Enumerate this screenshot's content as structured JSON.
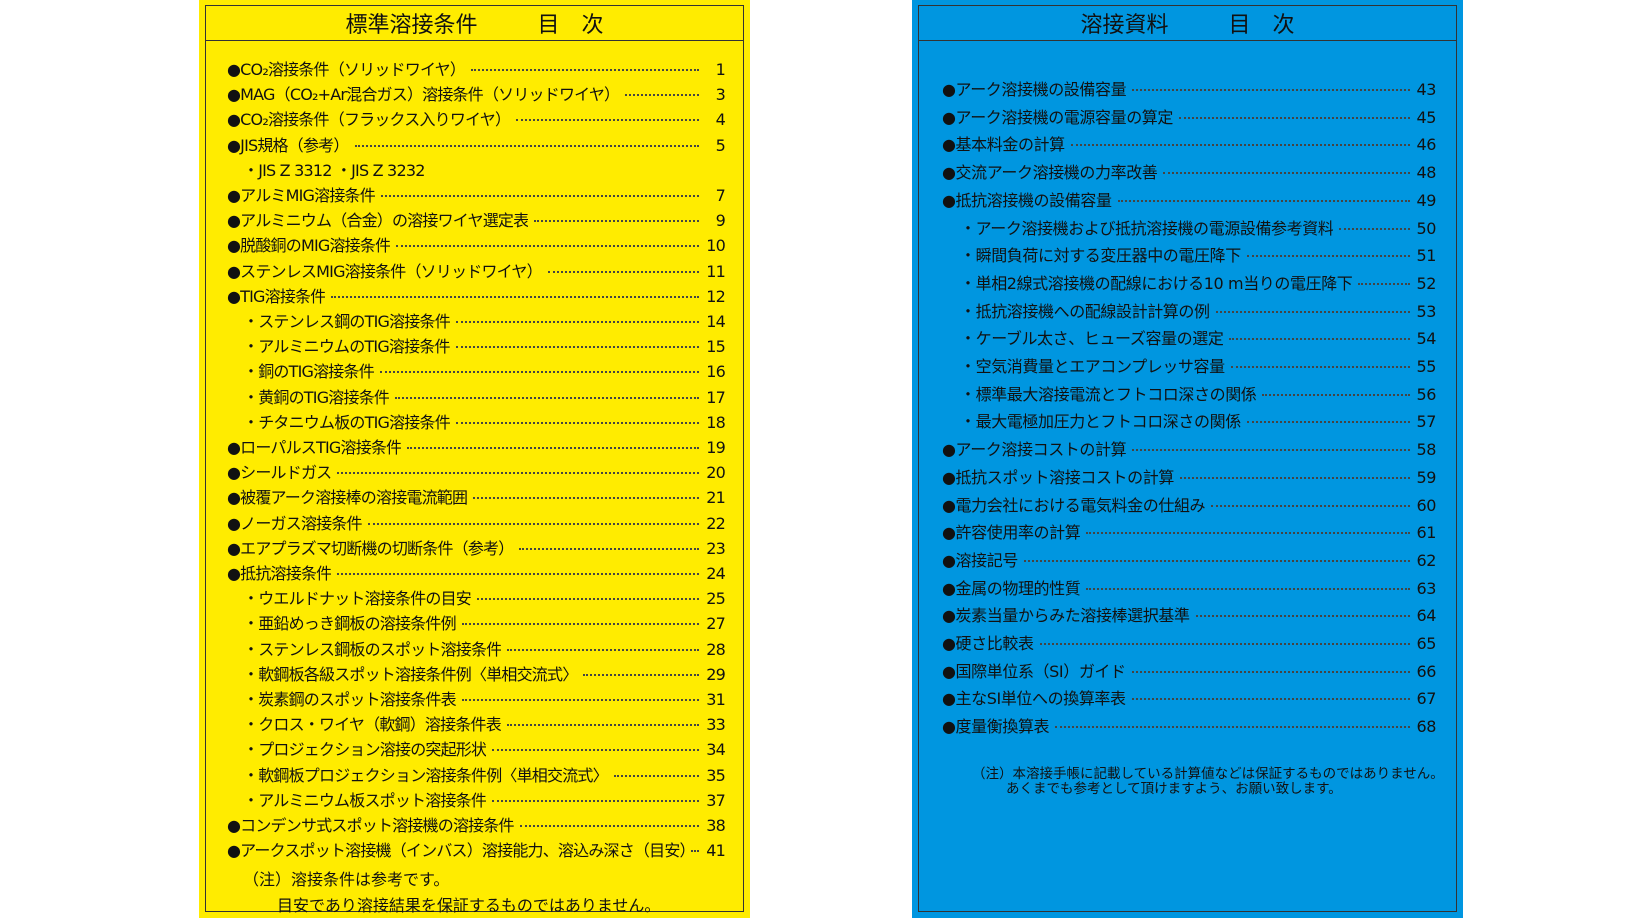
{
  "left": {
    "title": "標準溶接条件",
    "subtitle": "目　次",
    "entries": [
      {
        "label": "●CO₂溶接条件（ソリッドワイヤ）",
        "page": 1
      },
      {
        "label": "●MAG（CO₂+Ar混合ガス）溶接条件（ソリッドワイヤ）",
        "page": 3
      },
      {
        "label": "●CO₂溶接条件（フラックス入りワイヤ）",
        "page": 4
      },
      {
        "label": "●JIS規格（参考）",
        "page": 5
      },
      {
        "label": "・JIS Z 3312 ・JIS Z 3232"
      },
      {
        "label": "●アルミMIG溶接条件",
        "page": 7
      },
      {
        "label": "●アルミニウム（合金）の溶接ワイヤ選定表",
        "page": 9
      },
      {
        "label": "●脱酸銅のMIG溶接条件",
        "page": 10
      },
      {
        "label": "●ステンレスMIG溶接条件（ソリッドワイヤ）",
        "page": 11
      },
      {
        "label": "●TIG溶接条件",
        "page": 12
      },
      {
        "label": "・ステンレス鋼のTIG溶接条件",
        "page": 14
      },
      {
        "label": "・アルミニウムのTIG溶接条件",
        "page": 15
      },
      {
        "label": "・銅のTIG溶接条件",
        "page": 16
      },
      {
        "label": "・黄銅のTIG溶接条件",
        "page": 17
      },
      {
        "label": "・チタニウム板のTIG溶接条件",
        "page": 18
      },
      {
        "label": "●ローパルスTIG溶接条件",
        "page": 19
      },
      {
        "label": "●シールドガス",
        "page": 20
      },
      {
        "label": "●被覆アーク溶接棒の溶接電流範囲",
        "page": 21
      },
      {
        "label": "●ノーガス溶接条件",
        "page": 22
      },
      {
        "label": "●エアプラズマ切断機の切断条件（参考）",
        "page": 23
      },
      {
        "label": "●抵抗溶接条件",
        "page": 24
      },
      {
        "label": "・ウエルドナット溶接条件の目安",
        "page": 25
      },
      {
        "label": "・亜鉛めっき鋼板の溶接条件例",
        "page": 27
      },
      {
        "label": "・ステンレス鋼板のスポット溶接条件",
        "page": 28
      },
      {
        "label": "・軟鋼板各級スポット溶接条件例〈単相交流式〉",
        "page": 29
      },
      {
        "label": "・炭素鋼のスポット溶接条件表",
        "page": 31
      },
      {
        "label": "・クロス・ワイヤ（軟鋼）溶接条件表",
        "page": 33
      },
      {
        "label": "・プロジェクション溶接の突起形状",
        "page": 34
      },
      {
        "label": "・軟鋼板プロジェクション溶接条件例〈単相交流式〉",
        "page": 35
      },
      {
        "label": "・アルミニウム板スポット溶接条件",
        "page": 37
      },
      {
        "label": "●コンデンサ式スポット溶接機の溶接条件",
        "page": 38
      },
      {
        "label": "●アークスポット溶接機（インバス）溶接能力、溶込み深さ（目安）",
        "page": 41
      }
    ],
    "notes": [
      "（注）溶接条件は参考です。",
      "目安であり溶接結果を保証するものではありません。"
    ]
  },
  "right": {
    "title": "溶接資料",
    "subtitle": "目　次",
    "entries": [
      {
        "label": "●アーク溶接機の設備容量",
        "page": 43
      },
      {
        "label": "●アーク溶接機の電源容量の算定",
        "page": 45
      },
      {
        "label": "●基本料金の計算",
        "page": 46
      },
      {
        "label": "●交流アーク溶接機の力率改善",
        "page": 48
      },
      {
        "label": "●抵抗溶接機の設備容量",
        "page": 49
      },
      {
        "label": "・アーク溶接機および抵抗溶接機の電源設備参考資料",
        "page": 50
      },
      {
        "label": "・瞬間負荷に対する変圧器中の電圧降下",
        "page": 51
      },
      {
        "label": "・単相2線式溶接機の配線における10 m当りの電圧降下",
        "page": 52
      },
      {
        "label": "・抵抗溶接機への配線設計計算の例",
        "page": 53
      },
      {
        "label": "・ケーブル太さ、ヒューズ容量の選定",
        "page": 54
      },
      {
        "label": "・空気消費量とエアコンプレッサ容量",
        "page": 55
      },
      {
        "label": "・標準最大溶接電流とフトコロ深さの関係",
        "page": 56
      },
      {
        "label": "・最大電極加圧力とフトコロ深さの関係",
        "page": 57
      },
      {
        "label": "●アーク溶接コストの計算",
        "page": 58
      },
      {
        "label": "●抵抗スポット溶接コストの計算",
        "page": 59
      },
      {
        "label": "●電力会社における電気料金の仕組み",
        "page": 60
      },
      {
        "label": "●許容使用率の計算",
        "page": 61
      },
      {
        "label": "●溶接記号",
        "page": 62
      },
      {
        "label": "●金属の物理的性質",
        "page": 63
      },
      {
        "label": "●炭素当量からみた溶接棒選択基準",
        "page": 64
      },
      {
        "label": "●硬さ比較表",
        "page": 65
      },
      {
        "label": "●国際単位系（SI）ガイド",
        "page": 66
      },
      {
        "label": "●主なSI単位への換算率表",
        "page": 67
      },
      {
        "label": "●度量衡換算表",
        "page": 68
      }
    ],
    "notes": [
      "（注）本溶接手帳に記載している計算値などは保証するものではありません。",
      "あくまでも参考として頂けますよう、お願い致します。"
    ]
  }
}
